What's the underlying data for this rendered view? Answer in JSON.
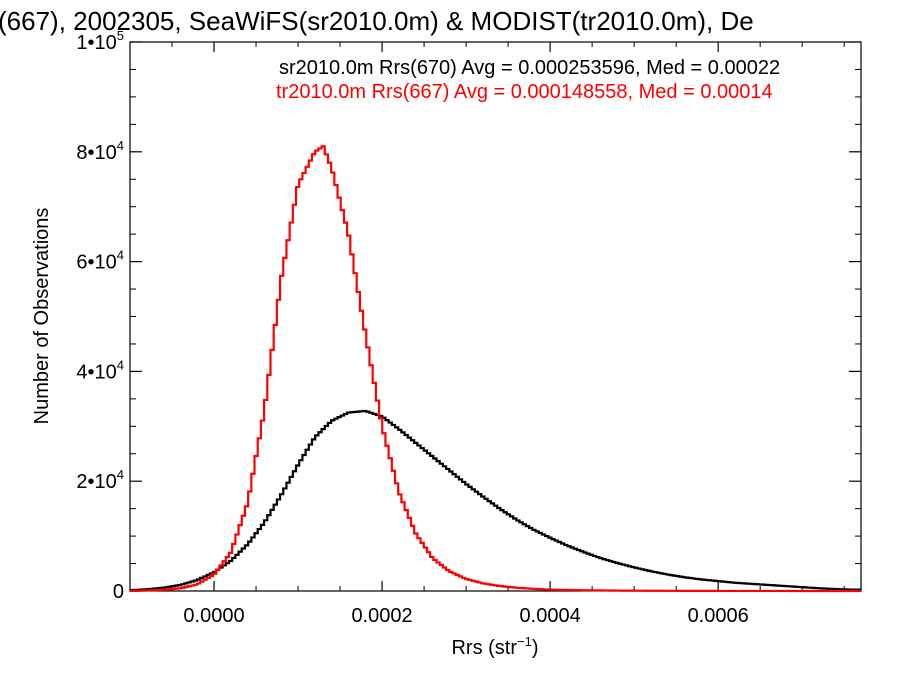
{
  "chart_data": {
    "type": "line",
    "title": "(667), 2002305, SeaWiFS(sr2010.0m) & MODIST(tr2010.0m), De",
    "xlabel": "Rrs (str",
    "xlabel_sup": "−1",
    "xlabel_end": ")",
    "ylabel": "Number of Observations",
    "xlim": [
      -0.0001,
      0.00077
    ],
    "ylim": [
      0,
      100000
    ],
    "xticks": [
      {
        "value": 0.0,
        "label": "0.0000"
      },
      {
        "value": 0.0002,
        "label": "0.0002"
      },
      {
        "value": 0.0004,
        "label": "0.0004"
      },
      {
        "value": 0.0006,
        "label": "0.0006"
      }
    ],
    "yticks": [
      {
        "value": 0,
        "base": "0",
        "exp": ""
      },
      {
        "value": 20000,
        "base": "2•10",
        "exp": "4"
      },
      {
        "value": 40000,
        "base": "4•10",
        "exp": "4"
      },
      {
        "value": 60000,
        "base": "6•10",
        "exp": "4"
      },
      {
        "value": 80000,
        "base": "8•10",
        "exp": "4"
      },
      {
        "value": 100000,
        "base": "1•10",
        "exp": "5"
      }
    ],
    "legend": [
      {
        "text": "sr2010.0m Rrs(670) Avg = 0.000253596, Med = 0.00022",
        "color": "#000000"
      },
      {
        "text": "tr2010.0m Rrs(667) Avg = 0.000148558, Med = 0.00014",
        "color": "#ff0000"
      }
    ],
    "series": [
      {
        "color": "#000000",
        "x": [
          -0.0001,
          -8e-05,
          -6e-05,
          -4e-05,
          -2e-05,
          0.0,
          2e-05,
          4e-05,
          6e-05,
          8e-05,
          0.0001,
          0.00012,
          0.00014,
          0.00016,
          0.00018,
          0.0002,
          0.00022,
          0.00024,
          0.00026,
          0.00028,
          0.0003,
          0.00032,
          0.00034,
          0.00036,
          0.00038,
          0.0004,
          0.00042,
          0.00044,
          0.00046,
          0.00048,
          0.0005,
          0.00052,
          0.00054,
          0.00056,
          0.00058,
          0.0006,
          0.00062,
          0.00064,
          0.00066,
          0.00068,
          0.0007,
          0.00072,
          0.00074,
          0.00076
        ],
        "y": [
          150,
          300,
          600,
          1100,
          2000,
          3400,
          5500,
          8500,
          12500,
          17500,
          23000,
          28000,
          31000,
          32500,
          32800,
          31800,
          29500,
          27000,
          24500,
          22000,
          19500,
          17200,
          15000,
          13000,
          11200,
          9700,
          8300,
          7100,
          6000,
          5100,
          4300,
          3600,
          3000,
          2500,
          2100,
          1800,
          1500,
          1300,
          1100,
          900,
          700,
          500,
          350,
          250
        ]
      },
      {
        "color": "#ff0000",
        "x": [
          -0.0001,
          -8e-05,
          -6e-05,
          -4e-05,
          -2e-05,
          0.0,
          2e-05,
          4e-05,
          6e-05,
          8e-05,
          0.0001,
          0.00012,
          0.00013,
          0.00014,
          0.00016,
          0.00018,
          0.0002,
          0.00022,
          0.00024,
          0.00026,
          0.00028,
          0.0003,
          0.00032,
          0.00034,
          0.00036,
          0.00038,
          0.0004,
          0.00045,
          0.0005,
          0.00055,
          0.0006,
          0.00065,
          0.0007,
          0.00076
        ],
        "y": [
          0,
          100,
          200,
          500,
          1200,
          3000,
          7000,
          16000,
          33000,
          57000,
          74000,
          80000,
          81000,
          77000,
          65000,
          47000,
          30000,
          18000,
          10500,
          6000,
          3600,
          2200,
          1400,
          900,
          600,
          400,
          250,
          120,
          60,
          30,
          15,
          10,
          5,
          0
        ]
      }
    ]
  }
}
